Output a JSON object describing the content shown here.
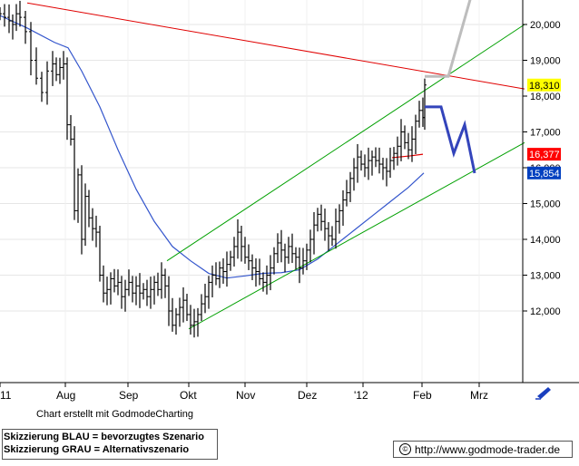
{
  "footer": {
    "credit": "Chart erstellt mit GodmodeCharting",
    "scenario_blue": "Skizzierung BLAU = bevorzugtes Szenario",
    "scenario_gray": "Skizzierung GRAU = Alternativszenario",
    "copyright_symbol": "©",
    "url": "http://www.godmode-trader.de"
  },
  "chart_data": {
    "type": "ohlc",
    "x_axis": {
      "labels": [
        "11",
        "Aug",
        "Sep",
        "Okt",
        "Nov",
        "Dez",
        "'12",
        "Feb",
        "Mrz"
      ]
    },
    "y_axis": {
      "ticks": [
        "20,000",
        "19,000",
        "18,000",
        "17,000",
        "16,000",
        "15,000",
        "14,000",
        "13,000",
        "12,000"
      ],
      "range": [
        11300,
        20700
      ]
    },
    "price_labels": [
      {
        "text": "18,310",
        "value": 18310,
        "color": "#ffff00"
      },
      {
        "text": "16,377",
        "value": 16377,
        "color": "#ff0000"
      },
      {
        "text": "15,854",
        "value": 15854,
        "color": "#0040c0"
      }
    ],
    "price_series_close": [
      {
        "t": 0,
        "c": 20300
      },
      {
        "t": 5,
        "c": 20200
      },
      {
        "t": 10,
        "c": 20100
      },
      {
        "t": 14,
        "c": 20000
      },
      {
        "t": 18,
        "c": 20300
      },
      {
        "t": 22,
        "c": 20200
      },
      {
        "t": 28,
        "c": 19800
      },
      {
        "t": 34,
        "c": 19000
      },
      {
        "t": 40,
        "c": 18500
      },
      {
        "t": 46,
        "c": 18100
      },
      {
        "t": 52,
        "c": 18700
      },
      {
        "t": 58,
        "c": 18900
      },
      {
        "t": 62,
        "c": 18600
      },
      {
        "t": 66,
        "c": 18800
      },
      {
        "t": 70,
        "c": 18900
      },
      {
        "t": 74,
        "c": 17200
      },
      {
        "t": 78,
        "c": 16800
      },
      {
        "t": 82,
        "c": 14800
      },
      {
        "t": 86,
        "c": 15800
      },
      {
        "t": 90,
        "c": 14000
      },
      {
        "t": 94,
        "c": 15200
      },
      {
        "t": 98,
        "c": 14600
      },
      {
        "t": 102,
        "c": 14300
      },
      {
        "t": 106,
        "c": 14200
      },
      {
        "t": 110,
        "c": 13000
      },
      {
        "t": 114,
        "c": 12500
      },
      {
        "t": 118,
        "c": 12600
      },
      {
        "t": 122,
        "c": 12900
      },
      {
        "t": 126,
        "c": 12700
      },
      {
        "t": 130,
        "c": 12800
      },
      {
        "t": 134,
        "c": 12400
      },
      {
        "t": 138,
        "c": 12600
      },
      {
        "t": 142,
        "c": 12800
      },
      {
        "t": 146,
        "c": 12500
      },
      {
        "t": 150,
        "c": 12700
      },
      {
        "t": 154,
        "c": 12500
      },
      {
        "t": 158,
        "c": 12600
      },
      {
        "t": 162,
        "c": 12400
      },
      {
        "t": 166,
        "c": 12600
      },
      {
        "t": 170,
        "c": 12800
      },
      {
        "t": 174,
        "c": 12600
      },
      {
        "t": 178,
        "c": 13000
      },
      {
        "t": 182,
        "c": 12700
      },
      {
        "t": 186,
        "c": 12000
      },
      {
        "t": 190,
        "c": 11600
      },
      {
        "t": 194,
        "c": 11900
      },
      {
        "t": 198,
        "c": 12100
      },
      {
        "t": 202,
        "c": 12300
      },
      {
        "t": 206,
        "c": 11900
      },
      {
        "t": 210,
        "c": 11600
      },
      {
        "t": 214,
        "c": 11700
      },
      {
        "t": 218,
        "c": 11900
      },
      {
        "t": 222,
        "c": 12200
      },
      {
        "t": 226,
        "c": 12400
      },
      {
        "t": 230,
        "c": 12800
      },
      {
        "t": 234,
        "c": 13000
      },
      {
        "t": 238,
        "c": 12900
      },
      {
        "t": 242,
        "c": 13200
      },
      {
        "t": 246,
        "c": 13100
      },
      {
        "t": 250,
        "c": 13300
      },
      {
        "t": 254,
        "c": 13500
      },
      {
        "t": 258,
        "c": 13800
      },
      {
        "t": 262,
        "c": 14200
      },
      {
        "t": 266,
        "c": 13800
      },
      {
        "t": 270,
        "c": 13500
      },
      {
        "t": 274,
        "c": 13400
      },
      {
        "t": 278,
        "c": 13200
      },
      {
        "t": 282,
        "c": 13100
      },
      {
        "t": 286,
        "c": 12900
      },
      {
        "t": 290,
        "c": 12800
      },
      {
        "t": 294,
        "c": 13000
      },
      {
        "t": 298,
        "c": 13200
      },
      {
        "t": 302,
        "c": 13600
      },
      {
        "t": 306,
        "c": 13900
      },
      {
        "t": 310,
        "c": 13700
      },
      {
        "t": 314,
        "c": 13500
      },
      {
        "t": 318,
        "c": 13800
      },
      {
        "t": 322,
        "c": 13600
      },
      {
        "t": 326,
        "c": 13500
      },
      {
        "t": 330,
        "c": 13200
      },
      {
        "t": 334,
        "c": 13400
      },
      {
        "t": 338,
        "c": 13700
      },
      {
        "t": 342,
        "c": 14000
      },
      {
        "t": 346,
        "c": 14400
      },
      {
        "t": 350,
        "c": 14700
      },
      {
        "t": 354,
        "c": 14500
      },
      {
        "t": 358,
        "c": 14300
      },
      {
        "t": 362,
        "c": 14100
      },
      {
        "t": 366,
        "c": 14000
      },
      {
        "t": 370,
        "c": 14500
      },
      {
        "t": 374,
        "c": 14800
      },
      {
        "t": 378,
        "c": 15100
      },
      {
        "t": 382,
        "c": 15300
      },
      {
        "t": 386,
        "c": 15700
      },
      {
        "t": 390,
        "c": 16000
      },
      {
        "t": 394,
        "c": 16300
      },
      {
        "t": 398,
        "c": 16100
      },
      {
        "t": 402,
        "c": 16000
      },
      {
        "t": 406,
        "c": 16200
      },
      {
        "t": 410,
        "c": 16300
      },
      {
        "t": 414,
        "c": 16200
      },
      {
        "t": 418,
        "c": 16100
      },
      {
        "t": 422,
        "c": 16000
      },
      {
        "t": 426,
        "c": 15900
      },
      {
        "t": 430,
        "c": 16200
      },
      {
        "t": 434,
        "c": 16400
      },
      {
        "t": 438,
        "c": 16600
      },
      {
        "t": 442,
        "c": 17000
      },
      {
        "t": 446,
        "c": 16700
      },
      {
        "t": 450,
        "c": 16500
      },
      {
        "t": 454,
        "c": 16800
      },
      {
        "t": 458,
        "c": 17300
      },
      {
        "t": 462,
        "c": 17600
      },
      {
        "t": 466,
        "c": 17400
      },
      {
        "t": 468,
        "c": 18310
      }
    ],
    "moving_average": [
      {
        "t": 0,
        "v": 20250
      },
      {
        "t": 30,
        "v": 19900
      },
      {
        "t": 60,
        "v": 19500
      },
      {
        "t": 75,
        "v": 19350
      },
      {
        "t": 90,
        "v": 18700
      },
      {
        "t": 110,
        "v": 17700
      },
      {
        "t": 130,
        "v": 16500
      },
      {
        "t": 150,
        "v": 15400
      },
      {
        "t": 170,
        "v": 14500
      },
      {
        "t": 190,
        "v": 13800
      },
      {
        "t": 210,
        "v": 13400
      },
      {
        "t": 230,
        "v": 13050
      },
      {
        "t": 250,
        "v": 12920
      },
      {
        "t": 270,
        "v": 12980
      },
      {
        "t": 290,
        "v": 13050
      },
      {
        "t": 310,
        "v": 13070
      },
      {
        "t": 330,
        "v": 13150
      },
      {
        "t": 350,
        "v": 13450
      },
      {
        "t": 370,
        "v": 13850
      },
      {
        "t": 390,
        "v": 14250
      },
      {
        "t": 410,
        "v": 14650
      },
      {
        "t": 430,
        "v": 15050
      },
      {
        "t": 450,
        "v": 15450
      },
      {
        "t": 467,
        "v": 15854
      }
    ],
    "red_short_line": [
      {
        "t": 432,
        "v": 16280
      },
      {
        "t": 452,
        "v": 16330
      },
      {
        "t": 466,
        "v": 16377
      }
    ],
    "red_trendline": {
      "from": {
        "t": 30,
        "v": 20600
      },
      "to": {
        "t": 578,
        "v": 18200
      }
    },
    "green_channel_upper": {
      "from": {
        "t": 184,
        "v": 13400
      },
      "to": {
        "t": 578,
        "v": 20000
      }
    },
    "green_channel_lower": {
      "from": {
        "t": 208,
        "v": 11500
      },
      "to": {
        "t": 578,
        "v": 16700
      }
    },
    "blue_scenario": [
      {
        "t": 468,
        "v": 17700
      },
      {
        "t": 486,
        "v": 17700
      },
      {
        "t": 500,
        "v": 16400
      },
      {
        "t": 512,
        "v": 17200
      },
      {
        "t": 523,
        "v": 15850
      }
    ],
    "gray_scenario": [
      {
        "t": 468,
        "v": 18550
      },
      {
        "t": 494,
        "v": 18550
      },
      {
        "t": 522,
        "v": 21050
      }
    ]
  }
}
